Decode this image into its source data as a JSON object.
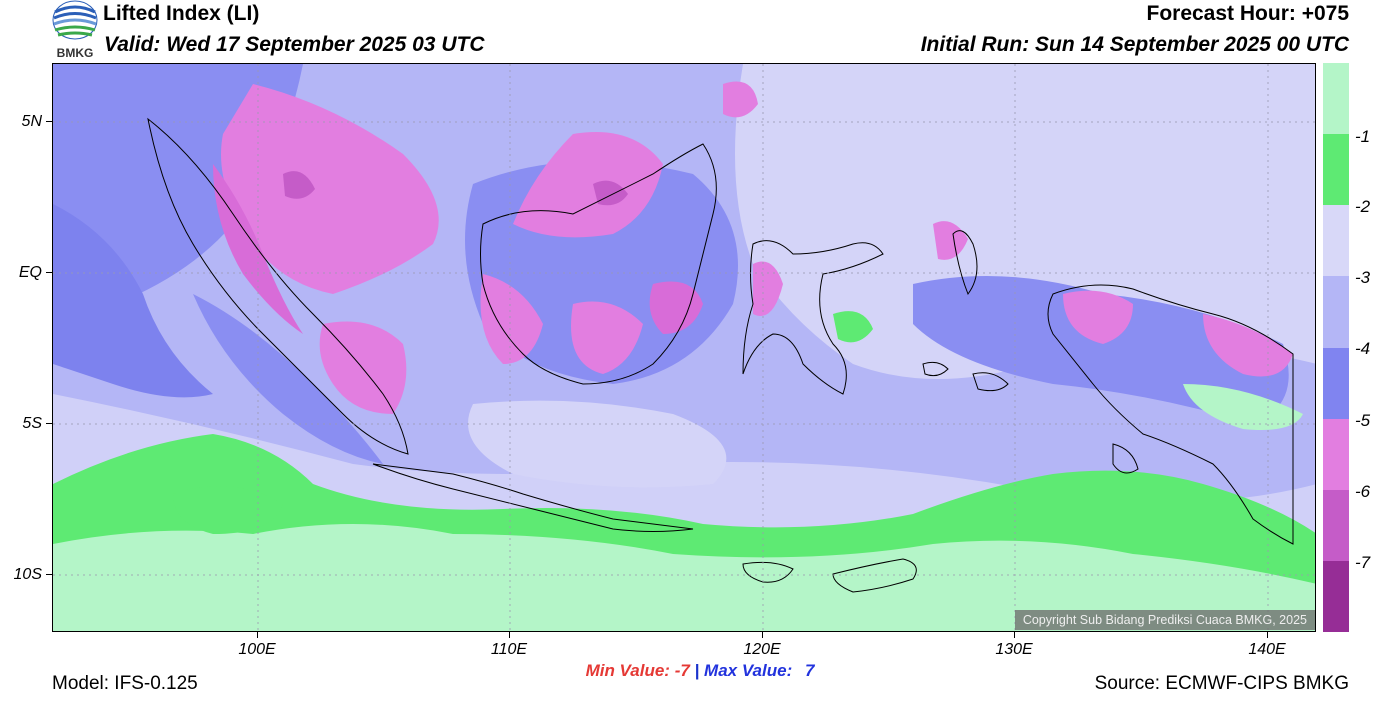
{
  "header": {
    "title": "Lifted Index (LI)",
    "valid": "Valid: Wed 17 September 2025 03 UTC",
    "forecast_hour": "Forecast Hour: +075",
    "initial_run": "Initial Run: Sun 14 September 2025 00 UTC",
    "logo_text": "BMKG"
  },
  "map": {
    "lat_labels": [
      "5N",
      "EQ",
      "5S",
      "10S"
    ],
    "lon_labels": [
      "100E",
      "110E",
      "120E",
      "130E",
      "140E"
    ],
    "copyright": "Copyright Sub Bidang Prediksi Cuaca BMKG, 2025"
  },
  "colorbar": {
    "labels": [
      "-1",
      "-2",
      "-3",
      "-4",
      "-5",
      "-6",
      "-7"
    ],
    "colors": [
      "#b4f5c8",
      "#5eea73",
      "#d8d8f8",
      "#b4b6f6",
      "#8084f0",
      "#e27ee0",
      "#c55cc8",
      "#962d96"
    ]
  },
  "footer": {
    "min_label": "Min Value:",
    "min_value": "-7",
    "separator": "|",
    "max_label": "Max Value:",
    "max_value": "7",
    "model": "Model: IFS-0.125",
    "source": "Source: ECMWF-CIPS BMKG"
  }
}
